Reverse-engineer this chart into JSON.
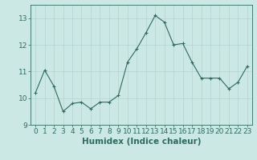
{
  "x": [
    0,
    1,
    2,
    3,
    4,
    5,
    6,
    7,
    8,
    9,
    10,
    11,
    12,
    13,
    14,
    15,
    16,
    17,
    18,
    19,
    20,
    21,
    22,
    23
  ],
  "y": [
    10.2,
    11.05,
    10.45,
    9.5,
    9.8,
    9.85,
    9.6,
    9.85,
    9.85,
    10.1,
    11.35,
    11.85,
    12.45,
    13.1,
    12.85,
    12.0,
    12.05,
    11.35,
    10.75,
    10.75,
    10.75,
    10.35,
    10.6,
    11.2
  ],
  "bg_color": "#cce8e4",
  "line_color": "#2d6b5e",
  "marker_color": "#2d6b5e",
  "grid_color": "#aacfcb",
  "axis_color": "#2d6b5e",
  "spine_color": "#2d6b5e",
  "xlabel": "Humidex (Indice chaleur)",
  "ylim": [
    9.0,
    13.5
  ],
  "yticks": [
    9,
    10,
    11,
    12,
    13
  ],
  "xticks": [
    0,
    1,
    2,
    3,
    4,
    5,
    6,
    7,
    8,
    9,
    10,
    11,
    12,
    13,
    14,
    15,
    16,
    17,
    18,
    19,
    20,
    21,
    22,
    23
  ],
  "tick_fontsize": 6.5,
  "xlabel_fontsize": 7.5,
  "linewidth": 0.8,
  "markersize": 3.5,
  "markeredgewidth": 0.8
}
